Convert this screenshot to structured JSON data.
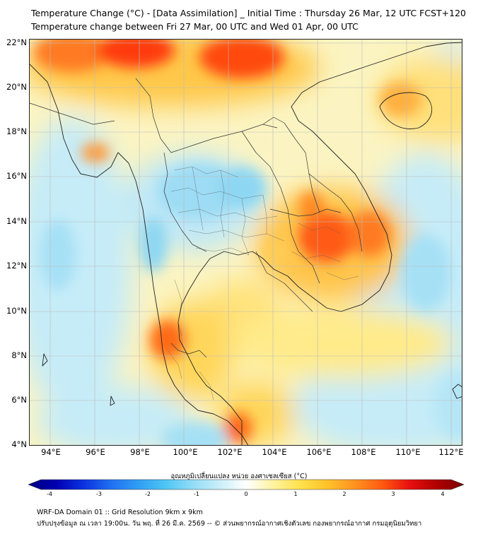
{
  "title": {
    "line1": "Temperature Change (°C) - [Data Assimilation] _ Initial Time : Thursday 26 Mar, 12 UTC FCST+120",
    "line2": "Temperature change between Fri 27 Mar, 00 UTC and Wed 01 Apr, 00 UTC"
  },
  "axes": {
    "lat_labels": [
      "22°N",
      "20°N",
      "18°N",
      "16°N",
      "14°N",
      "12°N",
      "10°N",
      "8°N",
      "6°N",
      "4°N"
    ],
    "lon_labels": [
      "94°E",
      "96°E",
      "98°E",
      "100°E",
      "102°E",
      "104°E",
      "106°E",
      "108°E",
      "110°E",
      "112°E"
    ],
    "lat_range": [
      4,
      22
    ],
    "lon_range": [
      93,
      112.5
    ]
  },
  "colorbar": {
    "title": "อุณหภูมิเปลี่ยนแปลง หน่วย องศาเซลเซียส (°C)",
    "ticks": [
      "-4",
      "-3",
      "-2",
      "-1",
      "0",
      "1",
      "2",
      "3",
      "4"
    ],
    "range": [
      -4,
      4
    ],
    "colors": [
      "#000080",
      "#0000b0",
      "#0a30e0",
      "#1f6ef0",
      "#2f9cf5",
      "#4cc4f5",
      "#8fdcf6",
      "#c8eefa",
      "#ffffff",
      "#fff3a0",
      "#ffe14a",
      "#ffc12a",
      "#ff9220",
      "#ff5a10",
      "#e81010",
      "#b00000",
      "#7a0000"
    ]
  },
  "footer": {
    "line1": "WRF-DA Domain 01 :: Grid Resolution 9km x 9km",
    "line2": "ปรับปรุงข้อมูล ณ เวลา 19:00น. วัน พฤ. ที่ 26 มี.ค. 2569 -- © ส่วนพยากรณ์อากาศเชิงตัวเลข กองพยากรณ์อากาศ กรมอุตุนิยมวิทยา"
  }
}
